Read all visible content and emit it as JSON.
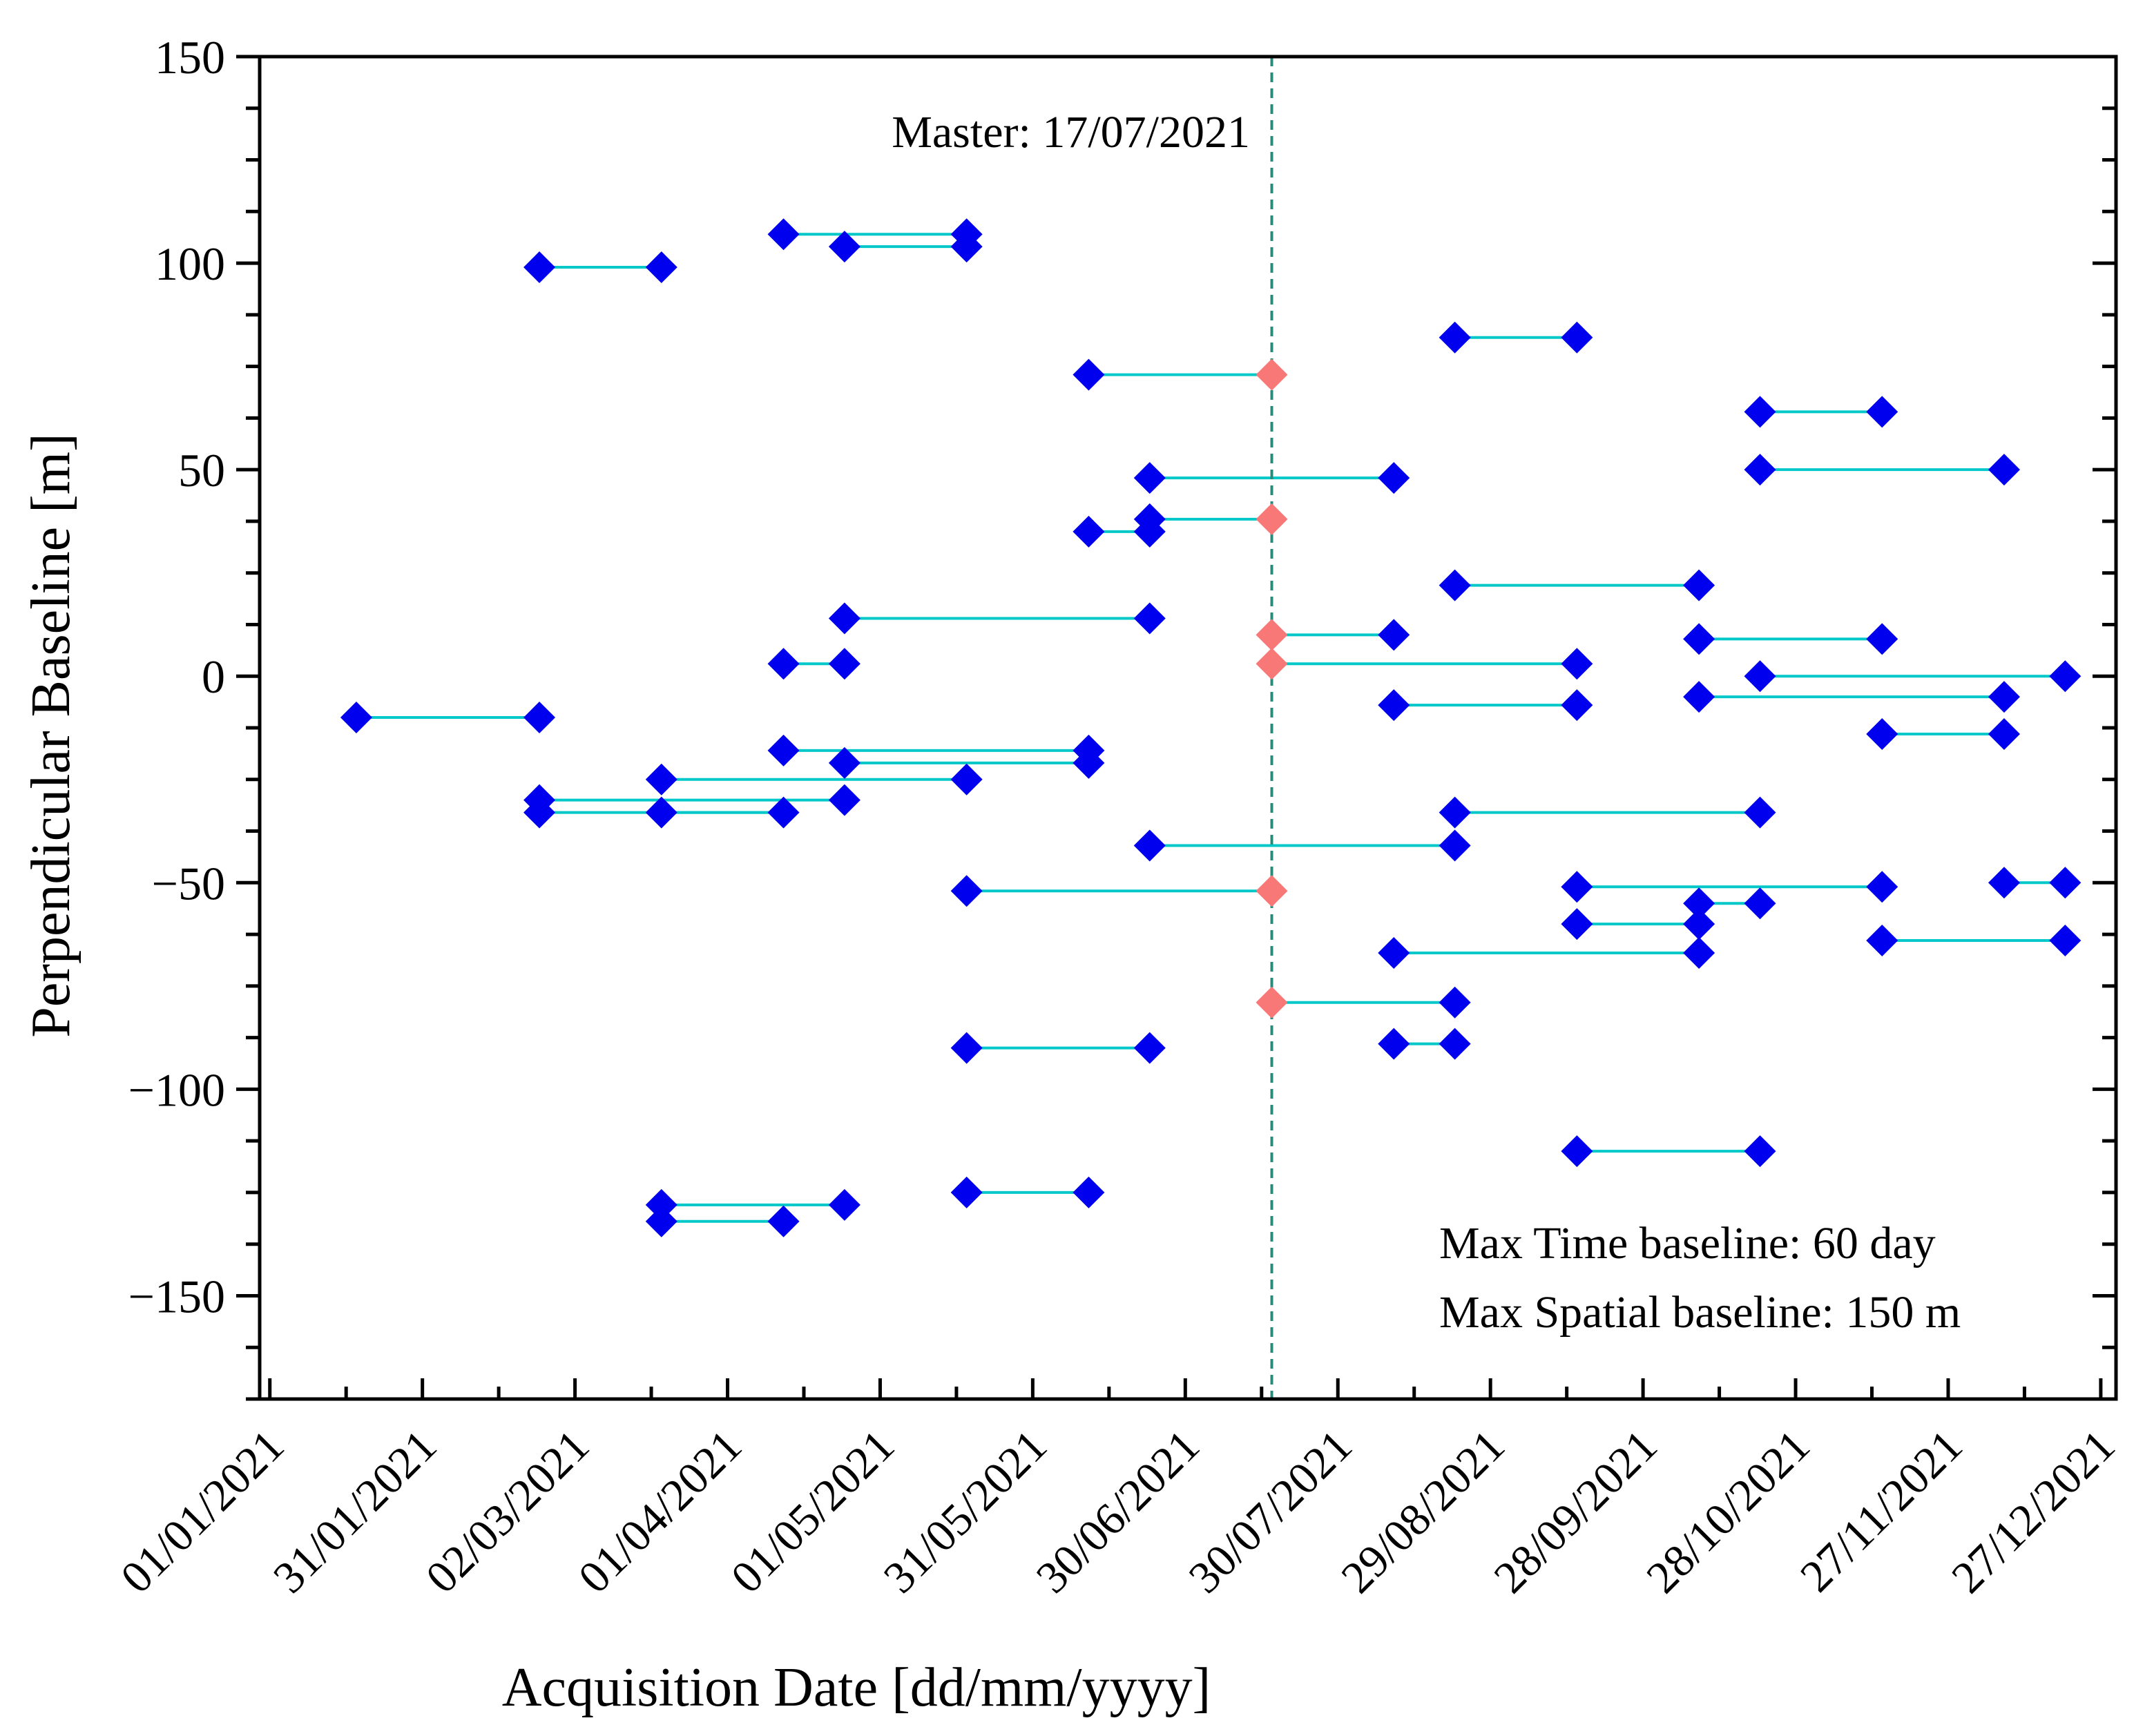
{
  "chart_data": {
    "type": "scatter",
    "title": "",
    "xlabel": "Acquisition Date [dd/mm/yyyy]",
    "ylabel": "Perpendicular Baseline [m]",
    "xlim_days": [
      -2,
      363
    ],
    "xlim_dates": [
      "30/12/2020",
      "30/12/2021"
    ],
    "ylim": [
      -175,
      150
    ],
    "x_ticks": [
      {
        "day": 0,
        "label": "01/01/2021"
      },
      {
        "day": 30,
        "label": "31/01/2021"
      },
      {
        "day": 60,
        "label": "02/03/2021"
      },
      {
        "day": 90,
        "label": "01/04/2021"
      },
      {
        "day": 120,
        "label": "01/05/2021"
      },
      {
        "day": 150,
        "label": "31/05/2021"
      },
      {
        "day": 180,
        "label": "30/06/2021"
      },
      {
        "day": 210,
        "label": "30/07/2021"
      },
      {
        "day": 240,
        "label": "29/08/2021"
      },
      {
        "day": 270,
        "label": "28/09/2021"
      },
      {
        "day": 300,
        "label": "28/10/2021"
      },
      {
        "day": 330,
        "label": "27/11/2021"
      },
      {
        "day": 360,
        "label": "27/12/2021"
      }
    ],
    "y_ticks": [
      {
        "value": 150,
        "label": "150"
      },
      {
        "value": 100,
        "label": "100"
      },
      {
        "value": 50,
        "label": "50"
      },
      {
        "value": 0,
        "label": "0"
      },
      {
        "value": -50,
        "label": "−50"
      },
      {
        "value": -100,
        "label": "−100"
      },
      {
        "value": -150,
        "label": "−150"
      }
    ],
    "master": {
      "label": "Master: 17/07/2021",
      "day": 197
    },
    "annotations": [
      "Max Time baseline: 60 day",
      "Max Spatial baseline: 150 m"
    ],
    "colors": {
      "slave": "#0000ee",
      "master": "#f87878",
      "link": "#00c8c8",
      "master_line": "#2a8a7a"
    },
    "pairs": [
      {
        "d1": 17,
        "b1": -10,
        "d2": 53,
        "b2": -10
      },
      {
        "d1": 53,
        "b1": 99,
        "d2": 77,
        "b2": 99
      },
      {
        "d1": 53,
        "b1": -30,
        "d2": 113,
        "b2": -30
      },
      {
        "d1": 53,
        "b1": -33,
        "d2": 101,
        "b2": -33
      },
      {
        "d1": 77,
        "b1": -25,
        "d2": 137,
        "b2": -25
      },
      {
        "d1": 77,
        "b1": -33,
        "d2": 101,
        "b2": -33
      },
      {
        "d1": 77,
        "b1": -128,
        "d2": 113,
        "b2": -128
      },
      {
        "d1": 77,
        "b1": -132,
        "d2": 101,
        "b2": -132
      },
      {
        "d1": 101,
        "b1": 107,
        "d2": 137,
        "b2": 107
      },
      {
        "d1": 101,
        "b1": 3,
        "d2": 113,
        "b2": 3
      },
      {
        "d1": 101,
        "b1": -18,
        "d2": 161,
        "b2": -18
      },
      {
        "d1": 113,
        "b1": 104,
        "d2": 137,
        "b2": 104
      },
      {
        "d1": 113,
        "b1": 14,
        "d2": 173,
        "b2": 14
      },
      {
        "d1": 113,
        "b1": -21,
        "d2": 161,
        "b2": -21
      },
      {
        "d1": 137,
        "b1": -52,
        "d2": 197,
        "b2": -52
      },
      {
        "d1": 137,
        "b1": -90,
        "d2": 173,
        "b2": -90
      },
      {
        "d1": 137,
        "b1": -125,
        "d2": 161,
        "b2": -125
      },
      {
        "d1": 161,
        "b1": 73,
        "d2": 197,
        "b2": 73
      },
      {
        "d1": 161,
        "b1": 35,
        "d2": 173,
        "b2": 35
      },
      {
        "d1": 173,
        "b1": 48,
        "d2": 221,
        "b2": 48
      },
      {
        "d1": 173,
        "b1": 38,
        "d2": 197,
        "b2": 38
      },
      {
        "d1": 173,
        "b1": -41,
        "d2": 233,
        "b2": -41
      },
      {
        "d1": 197,
        "b1": 10,
        "d2": 221,
        "b2": 10
      },
      {
        "d1": 197,
        "b1": 3,
        "d2": 257,
        "b2": 3
      },
      {
        "d1": 197,
        "b1": -79,
        "d2": 233,
        "b2": -79
      },
      {
        "d1": 221,
        "b1": -7,
        "d2": 257,
        "b2": -7
      },
      {
        "d1": 221,
        "b1": -67,
        "d2": 281,
        "b2": -67
      },
      {
        "d1": 221,
        "b1": -89,
        "d2": 233,
        "b2": -89
      },
      {
        "d1": 233,
        "b1": 82,
        "d2": 257,
        "b2": 82
      },
      {
        "d1": 233,
        "b1": 22,
        "d2": 281,
        "b2": 22
      },
      {
        "d1": 233,
        "b1": -33,
        "d2": 293,
        "b2": -33
      },
      {
        "d1": 257,
        "b1": -51,
        "d2": 317,
        "b2": -51
      },
      {
        "d1": 257,
        "b1": -60,
        "d2": 281,
        "b2": -60
      },
      {
        "d1": 257,
        "b1": -115,
        "d2": 293,
        "b2": -115
      },
      {
        "d1": 281,
        "b1": 9,
        "d2": 317,
        "b2": 9
      },
      {
        "d1": 281,
        "b1": -5,
        "d2": 341,
        "b2": -5
      },
      {
        "d1": 281,
        "b1": -55,
        "d2": 293,
        "b2": -55
      },
      {
        "d1": 293,
        "b1": 64,
        "d2": 317,
        "b2": 64
      },
      {
        "d1": 293,
        "b1": 50,
        "d2": 341,
        "b2": 50
      },
      {
        "d1": 293,
        "b1": 0,
        "d2": 353,
        "b2": 0
      },
      {
        "d1": 317,
        "b1": -14,
        "d2": 341,
        "b2": -14
      },
      {
        "d1": 317,
        "b1": -64,
        "d2": 353,
        "b2": -64
      },
      {
        "d1": 341,
        "b1": -50,
        "d2": 353,
        "b2": -50
      }
    ]
  }
}
